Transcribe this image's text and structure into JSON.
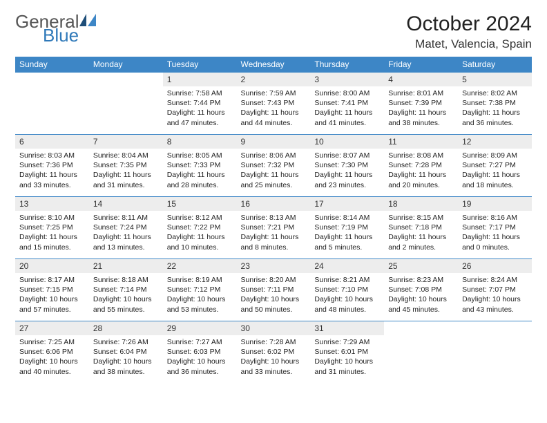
{
  "logo": {
    "text_general": "General",
    "text_blue": "Blue"
  },
  "title": "October 2024",
  "location": "Matet, Valencia, Spain",
  "columns": [
    "Sunday",
    "Monday",
    "Tuesday",
    "Wednesday",
    "Thursday",
    "Friday",
    "Saturday"
  ],
  "colors": {
    "header_bg": "#3d86c6",
    "header_text": "#ffffff",
    "cell_border": "#3d86c6",
    "daynum_bg": "#ededed",
    "logo_accent": "#2f79b9",
    "logo_dark": "#1e4e79"
  },
  "weeks": [
    [
      {
        "blank": true
      },
      {
        "blank": true
      },
      {
        "num": "1",
        "sunrise": "Sunrise: 7:58 AM",
        "sunset": "Sunset: 7:44 PM",
        "daylight": "Daylight: 11 hours and 47 minutes."
      },
      {
        "num": "2",
        "sunrise": "Sunrise: 7:59 AM",
        "sunset": "Sunset: 7:43 PM",
        "daylight": "Daylight: 11 hours and 44 minutes."
      },
      {
        "num": "3",
        "sunrise": "Sunrise: 8:00 AM",
        "sunset": "Sunset: 7:41 PM",
        "daylight": "Daylight: 11 hours and 41 minutes."
      },
      {
        "num": "4",
        "sunrise": "Sunrise: 8:01 AM",
        "sunset": "Sunset: 7:39 PM",
        "daylight": "Daylight: 11 hours and 38 minutes."
      },
      {
        "num": "5",
        "sunrise": "Sunrise: 8:02 AM",
        "sunset": "Sunset: 7:38 PM",
        "daylight": "Daylight: 11 hours and 36 minutes."
      }
    ],
    [
      {
        "num": "6",
        "sunrise": "Sunrise: 8:03 AM",
        "sunset": "Sunset: 7:36 PM",
        "daylight": "Daylight: 11 hours and 33 minutes."
      },
      {
        "num": "7",
        "sunrise": "Sunrise: 8:04 AM",
        "sunset": "Sunset: 7:35 PM",
        "daylight": "Daylight: 11 hours and 31 minutes."
      },
      {
        "num": "8",
        "sunrise": "Sunrise: 8:05 AM",
        "sunset": "Sunset: 7:33 PM",
        "daylight": "Daylight: 11 hours and 28 minutes."
      },
      {
        "num": "9",
        "sunrise": "Sunrise: 8:06 AM",
        "sunset": "Sunset: 7:32 PM",
        "daylight": "Daylight: 11 hours and 25 minutes."
      },
      {
        "num": "10",
        "sunrise": "Sunrise: 8:07 AM",
        "sunset": "Sunset: 7:30 PM",
        "daylight": "Daylight: 11 hours and 23 minutes."
      },
      {
        "num": "11",
        "sunrise": "Sunrise: 8:08 AM",
        "sunset": "Sunset: 7:28 PM",
        "daylight": "Daylight: 11 hours and 20 minutes."
      },
      {
        "num": "12",
        "sunrise": "Sunrise: 8:09 AM",
        "sunset": "Sunset: 7:27 PM",
        "daylight": "Daylight: 11 hours and 18 minutes."
      }
    ],
    [
      {
        "num": "13",
        "sunrise": "Sunrise: 8:10 AM",
        "sunset": "Sunset: 7:25 PM",
        "daylight": "Daylight: 11 hours and 15 minutes."
      },
      {
        "num": "14",
        "sunrise": "Sunrise: 8:11 AM",
        "sunset": "Sunset: 7:24 PM",
        "daylight": "Daylight: 11 hours and 13 minutes."
      },
      {
        "num": "15",
        "sunrise": "Sunrise: 8:12 AM",
        "sunset": "Sunset: 7:22 PM",
        "daylight": "Daylight: 11 hours and 10 minutes."
      },
      {
        "num": "16",
        "sunrise": "Sunrise: 8:13 AM",
        "sunset": "Sunset: 7:21 PM",
        "daylight": "Daylight: 11 hours and 8 minutes."
      },
      {
        "num": "17",
        "sunrise": "Sunrise: 8:14 AM",
        "sunset": "Sunset: 7:19 PM",
        "daylight": "Daylight: 11 hours and 5 minutes."
      },
      {
        "num": "18",
        "sunrise": "Sunrise: 8:15 AM",
        "sunset": "Sunset: 7:18 PM",
        "daylight": "Daylight: 11 hours and 2 minutes."
      },
      {
        "num": "19",
        "sunrise": "Sunrise: 8:16 AM",
        "sunset": "Sunset: 7:17 PM",
        "daylight": "Daylight: 11 hours and 0 minutes."
      }
    ],
    [
      {
        "num": "20",
        "sunrise": "Sunrise: 8:17 AM",
        "sunset": "Sunset: 7:15 PM",
        "daylight": "Daylight: 10 hours and 57 minutes."
      },
      {
        "num": "21",
        "sunrise": "Sunrise: 8:18 AM",
        "sunset": "Sunset: 7:14 PM",
        "daylight": "Daylight: 10 hours and 55 minutes."
      },
      {
        "num": "22",
        "sunrise": "Sunrise: 8:19 AM",
        "sunset": "Sunset: 7:12 PM",
        "daylight": "Daylight: 10 hours and 53 minutes."
      },
      {
        "num": "23",
        "sunrise": "Sunrise: 8:20 AM",
        "sunset": "Sunset: 7:11 PM",
        "daylight": "Daylight: 10 hours and 50 minutes."
      },
      {
        "num": "24",
        "sunrise": "Sunrise: 8:21 AM",
        "sunset": "Sunset: 7:10 PM",
        "daylight": "Daylight: 10 hours and 48 minutes."
      },
      {
        "num": "25",
        "sunrise": "Sunrise: 8:23 AM",
        "sunset": "Sunset: 7:08 PM",
        "daylight": "Daylight: 10 hours and 45 minutes."
      },
      {
        "num": "26",
        "sunrise": "Sunrise: 8:24 AM",
        "sunset": "Sunset: 7:07 PM",
        "daylight": "Daylight: 10 hours and 43 minutes."
      }
    ],
    [
      {
        "num": "27",
        "sunrise": "Sunrise: 7:25 AM",
        "sunset": "Sunset: 6:06 PM",
        "daylight": "Daylight: 10 hours and 40 minutes."
      },
      {
        "num": "28",
        "sunrise": "Sunrise: 7:26 AM",
        "sunset": "Sunset: 6:04 PM",
        "daylight": "Daylight: 10 hours and 38 minutes."
      },
      {
        "num": "29",
        "sunrise": "Sunrise: 7:27 AM",
        "sunset": "Sunset: 6:03 PM",
        "daylight": "Daylight: 10 hours and 36 minutes."
      },
      {
        "num": "30",
        "sunrise": "Sunrise: 7:28 AM",
        "sunset": "Sunset: 6:02 PM",
        "daylight": "Daylight: 10 hours and 33 minutes."
      },
      {
        "num": "31",
        "sunrise": "Sunrise: 7:29 AM",
        "sunset": "Sunset: 6:01 PM",
        "daylight": "Daylight: 10 hours and 31 minutes."
      },
      {
        "blank": true
      },
      {
        "blank": true
      }
    ]
  ]
}
